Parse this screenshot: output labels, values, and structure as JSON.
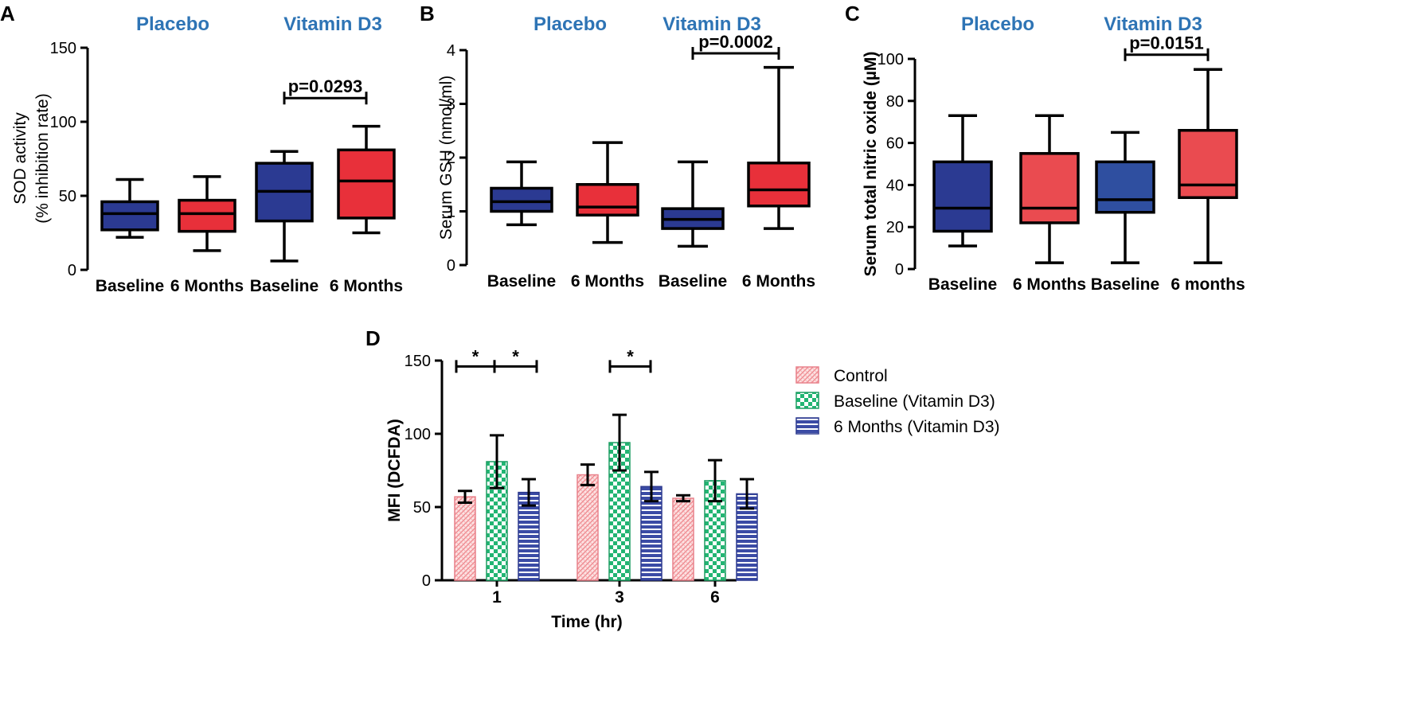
{
  "colors": {
    "placebo_box": "#2b3a92",
    "vitd_box_blue": "#2f4fa0",
    "red_box": "#e8303a",
    "red_box_light": "#ea4b50",
    "group_label": "#2e74b5",
    "control_bar": "#f4a0a4",
    "baseline_bar": "#22b573",
    "months_bar": "#3b4ba5"
  },
  "chart_data": [
    {
      "panel": "A",
      "type": "boxplot",
      "group_labels": [
        "Placebo",
        "Vitamin D3"
      ],
      "categories": [
        "Baseline",
        "6 Months",
        "Baseline",
        "6 Months"
      ],
      "ylabel_line1": "SOD activity",
      "ylabel_line2": "(% inhibition rate)",
      "ylim": [
        0,
        150
      ],
      "yticks": [
        0,
        50,
        100,
        150
      ],
      "tick_labels": [
        "0",
        "50",
        "100",
        "150"
      ],
      "boxes": [
        {
          "min": 22,
          "q1": 27,
          "median": 38,
          "q3": 46,
          "max": 61,
          "color": "placebo_box"
        },
        {
          "min": 13,
          "q1": 26,
          "median": 38,
          "q3": 47,
          "max": 63,
          "color": "red_box"
        },
        {
          "min": 6,
          "q1": 33,
          "median": 53,
          "q3": 72,
          "max": 80,
          "color": "placebo_box"
        },
        {
          "min": 25,
          "q1": 35,
          "median": 60,
          "q3": 81,
          "max": 97,
          "color": "red_box"
        }
      ],
      "significance": [
        {
          "from": 2,
          "to": 3,
          "label": "p=0.0293",
          "y": 116
        }
      ]
    },
    {
      "panel": "B",
      "type": "boxplot",
      "group_labels": [
        "Placebo",
        "Vitamin D3"
      ],
      "categories": [
        "Baseline",
        "6 Months",
        "Baseline",
        "6 Months"
      ],
      "ylabel_line1": "Serum GSH (nmol/ml)",
      "ylim": [
        0,
        4
      ],
      "yticks": [
        0,
        1,
        2,
        3,
        4
      ],
      "tick_labels": [
        "0",
        "1",
        "2",
        "3",
        "4"
      ],
      "boxes": [
        {
          "min": 0.75,
          "q1": 1.0,
          "median": 1.18,
          "q3": 1.43,
          "max": 1.92,
          "color": "placebo_box"
        },
        {
          "min": 0.42,
          "q1": 0.93,
          "median": 1.08,
          "q3": 1.5,
          "max": 2.28,
          "color": "red_box"
        },
        {
          "min": 0.35,
          "q1": 0.68,
          "median": 0.85,
          "q3": 1.05,
          "max": 1.92,
          "color": "placebo_box"
        },
        {
          "min": 0.68,
          "q1": 1.1,
          "median": 1.4,
          "q3": 1.9,
          "max": 3.68,
          "color": "red_box"
        }
      ],
      "significance": [
        {
          "from": 2,
          "to": 3,
          "label": "p=0.0002",
          "y": 3.94
        }
      ]
    },
    {
      "panel": "C",
      "type": "boxplot",
      "group_labels": [
        "Placebo",
        "Vitamin D3"
      ],
      "categories": [
        "Baseline",
        "6 Months",
        "Baseline",
        "6 months"
      ],
      "ylabel_line1": "Serum total nitric oxide (µM)",
      "ylim": [
        0,
        100
      ],
      "yticks": [
        0,
        20,
        40,
        60,
        80,
        100
      ],
      "tick_labels": [
        "0",
        "20",
        "40",
        "60",
        "80",
        "100"
      ],
      "boxes": [
        {
          "min": 11,
          "q1": 18,
          "median": 29,
          "q3": 51,
          "max": 73,
          "color": "placebo_box"
        },
        {
          "min": 3,
          "q1": 22,
          "median": 29,
          "q3": 55,
          "max": 73,
          "color": "red_box_light"
        },
        {
          "min": 3,
          "q1": 27,
          "median": 33,
          "q3": 51,
          "max": 65,
          "color": "vitd_box_blue"
        },
        {
          "min": 3,
          "q1": 34,
          "median": 40,
          "q3": 66,
          "max": 95,
          "color": "red_box_light"
        }
      ],
      "significance": [
        {
          "from": 2,
          "to": 3,
          "label": "p=0.0151",
          "y": 102
        }
      ]
    },
    {
      "panel": "D",
      "type": "bar",
      "categories": [
        "1",
        "3",
        "6"
      ],
      "xlabel": "Time (hr)",
      "ylabel": "MFI (DCFDA)",
      "ylim": [
        0,
        150
      ],
      "yticks": [
        0,
        50,
        100,
        150
      ],
      "tick_labels": [
        "0",
        "50",
        "100",
        "150"
      ],
      "series": [
        {
          "name": "Control",
          "color": "control_bar",
          "pattern": "hatch",
          "values": [
            57,
            72,
            56
          ],
          "errors": [
            4,
            7,
            2
          ]
        },
        {
          "name": "Baseline (Vitamin D3)",
          "color": "baseline_bar",
          "pattern": "checker",
          "values": [
            81,
            94,
            68
          ],
          "errors": [
            18,
            19,
            14
          ]
        },
        {
          "name": "6 Months (Vitamin D3)",
          "color": "months_bar",
          "pattern": "stripes",
          "values": [
            60,
            64,
            59
          ],
          "errors": [
            9,
            10,
            10
          ]
        }
      ],
      "significance": [
        {
          "from_group": 0,
          "from_series": 0,
          "to_group": 0,
          "to_series": 1,
          "label": "*",
          "y": 146
        },
        {
          "from_group": 0,
          "from_series": 1,
          "to_group": 0,
          "to_series": 2,
          "label": "*",
          "y": 146
        },
        {
          "from_group": 1,
          "from_series": 1,
          "to_group": 1,
          "to_series": 2,
          "label": "*",
          "y": 146
        }
      ],
      "legend_position": "right"
    }
  ]
}
